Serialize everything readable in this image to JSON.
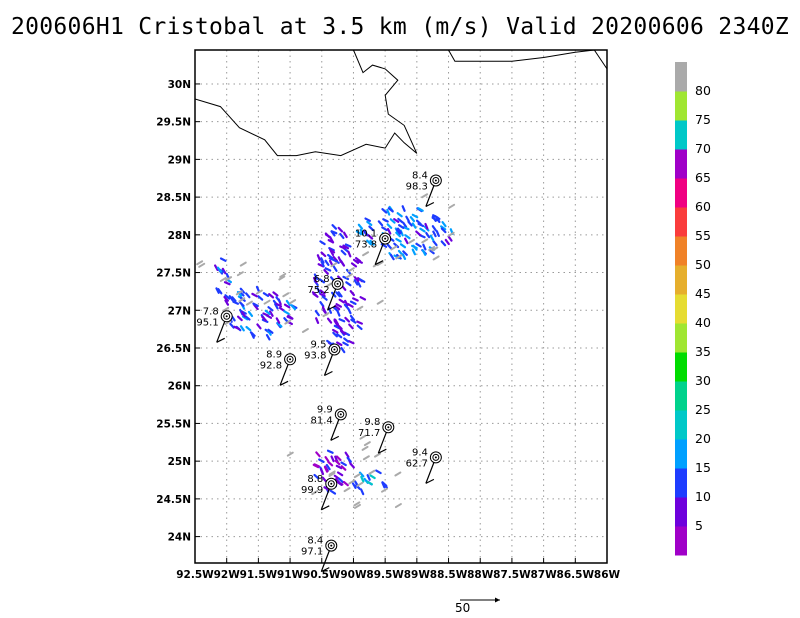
{
  "title": "200606H1 Cristobal at 3.5 km (m/s) Valid 20200606 2340Z",
  "chart_data": {
    "type": "map",
    "x_unit": "degrees longitude (negative = W)",
    "y_unit": "degrees latitude (N)",
    "xlim": [
      -92.5,
      -86.0
    ],
    "ylim": [
      23.65,
      30.45
    ],
    "grid": true,
    "x_ticks": [
      -92.5,
      -92,
      -91.5,
      -91,
      -90.5,
      -90,
      -89.5,
      -89,
      -88.5,
      -88,
      -87.5,
      -87,
      -86.5,
      -86
    ],
    "x_tick_labels": [
      "92.5W",
      "92W",
      "91.5W",
      "91W",
      "90.5W",
      "90W",
      "89.5W",
      "89W",
      "88.5W",
      "88W",
      "87.5W",
      "87W",
      "86.5W",
      "86W"
    ],
    "y_ticks": [
      24,
      24.5,
      25,
      25.5,
      26,
      26.5,
      27,
      27.5,
      28,
      28.5,
      29,
      29.5,
      30
    ],
    "y_tick_labels": [
      "24N",
      "24.5N",
      "25N",
      "25.5N",
      "26N",
      "26.5N",
      "27N",
      "27.5N",
      "28N",
      "28.5N",
      "29N",
      "29.5N",
      "30N"
    ],
    "coastline": [
      [
        [
          -92.5,
          29.8
        ],
        [
          -92.1,
          29.7
        ],
        [
          -91.8,
          29.42
        ],
        [
          -91.4,
          29.26
        ],
        [
          -91.2,
          29.05
        ],
        [
          -90.9,
          29.05
        ],
        [
          -90.6,
          29.1
        ],
        [
          -90.2,
          29.05
        ],
        [
          -89.8,
          29.2
        ],
        [
          -89.5,
          29.15
        ],
        [
          -89.35,
          29.35
        ],
        [
          -89.2,
          29.22
        ],
        [
          -89.0,
          29.08
        ],
        [
          -89.2,
          29.45
        ],
        [
          -89.45,
          29.6
        ],
        [
          -89.5,
          29.85
        ],
        [
          -89.3,
          30.05
        ],
        [
          -89.5,
          30.2
        ],
        [
          -89.7,
          30.25
        ],
        [
          -89.85,
          30.15
        ],
        [
          -90.0,
          30.45
        ]
      ],
      [
        [
          -88.5,
          30.45
        ],
        [
          -88.4,
          30.3
        ],
        [
          -88.0,
          30.3
        ],
        [
          -87.5,
          30.3
        ],
        [
          -87.0,
          30.35
        ],
        [
          -86.5,
          30.42
        ],
        [
          -86.2,
          30.45
        ],
        [
          -86.0,
          30.2
        ]
      ]
    ],
    "colorbar": {
      "labels": [
        "5",
        "10",
        "15",
        "20",
        "25",
        "30",
        "35",
        "40",
        "45",
        "50",
        "55",
        "60",
        "65",
        "70",
        "75",
        "80"
      ],
      "colors": [
        "#a000c8",
        "#6e00dc",
        "#1e3cff",
        "#00a0ff",
        "#00c8c8",
        "#00d28c",
        "#00dc00",
        "#a0e632",
        "#e6dc32",
        "#e6af2d",
        "#f08228",
        "#fa3c3c",
        "#f00082",
        "#a000c8",
        "#00c8c8",
        "#a0e632",
        "#aaaaaa"
      ]
    },
    "markers": [
      {
        "lon": -88.7,
        "lat": 28.72,
        "top": "8.4",
        "bottom": "98.3"
      },
      {
        "lon": -89.5,
        "lat": 27.95,
        "top": "10.1",
        "bottom": "73.8"
      },
      {
        "lon": -90.25,
        "lat": 27.35,
        "top": "6.8",
        "bottom": "75.2"
      },
      {
        "lon": -92.0,
        "lat": 26.92,
        "top": "7.8",
        "bottom": "95.1"
      },
      {
        "lon": -91.0,
        "lat": 26.35,
        "top": "8.9",
        "bottom": "92.8"
      },
      {
        "lon": -90.3,
        "lat": 26.48,
        "top": "9.5",
        "bottom": "93.8"
      },
      {
        "lon": -90.2,
        "lat": 25.62,
        "top": "9.9",
        "bottom": "81.4"
      },
      {
        "lon": -89.45,
        "lat": 25.45,
        "top": "9.8",
        "bottom": "71.7"
      },
      {
        "lon": -88.7,
        "lat": 25.05,
        "top": "9.4",
        "bottom": "62.7"
      },
      {
        "lon": -90.35,
        "lat": 24.7,
        "top": "8.8",
        "bottom": "99.9"
      },
      {
        "lon": -90.35,
        "lat": 23.88,
        "top": "8.4",
        "bottom": "97.1"
      }
    ],
    "radar_regions": [
      {
        "lon": -90.25,
        "lat": 27.3,
        "rx": 0.4,
        "ry": 0.85,
        "mean_speed": 10
      },
      {
        "lon": -89.2,
        "lat": 28.05,
        "rx": 0.75,
        "ry": 0.35,
        "mean_speed": 14
      },
      {
        "lon": -91.5,
        "lat": 27.0,
        "rx": 0.55,
        "ry": 0.35,
        "mean_speed": 12
      },
      {
        "lon": -90.35,
        "lat": 24.9,
        "rx": 0.35,
        "ry": 0.3,
        "mean_speed": 7
      },
      {
        "lon": -89.8,
        "lat": 24.75,
        "rx": 0.3,
        "ry": 0.15,
        "mean_speed": 17
      },
      {
        "lon": -92.1,
        "lat": 27.35,
        "rx": 0.12,
        "ry": 0.35,
        "mean_speed": 12
      }
    ],
    "vector_scale_label": "50"
  }
}
